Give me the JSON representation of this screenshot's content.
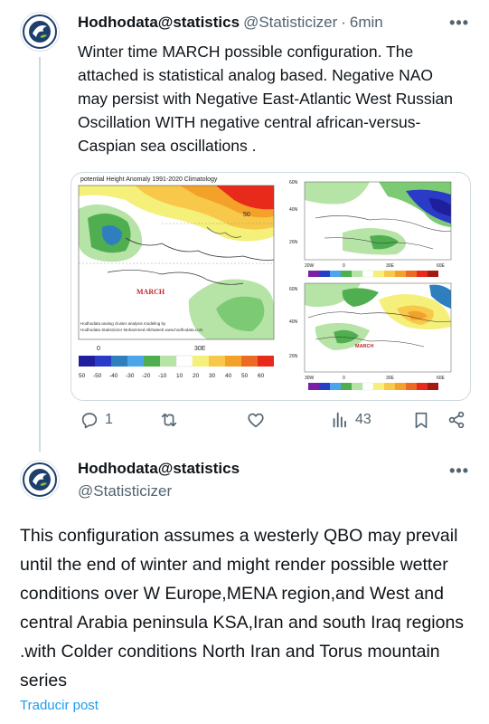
{
  "tweet1": {
    "display_name": "Hodhodata@statistics",
    "handle": "@Statisticizer",
    "separator": "·",
    "time": "6min",
    "more": "•••",
    "text": "Winter time MARCH possible configuration. The attached is statistical analog based. Negative NAO may persist with Negative East-Atlantic West Russian Oscillation WITH negative central african-versus-Caspian sea oscillations .",
    "media": {
      "left_title": "potential Height Anomaly 1991-2020 Climatology",
      "month_label": "MARCH",
      "credit_line1": "Hodhodata analog cluster analysis modeling by",
      "credit_line2": "Hodhodata Statisticizer Mohammed Alkhateeb www.hodhodata.com",
      "contour_label": "50",
      "left_axis_tick": "0",
      "left_axis_tick_2": "30E",
      "left_scale": [
        "50",
        "-50",
        "-40",
        "-30",
        "-20",
        "-10",
        "10",
        "20",
        "30",
        "40",
        "50",
        "60"
      ],
      "right_top_lat": [
        "60N",
        "40N",
        "20N"
      ],
      "right_top_lon": [
        "20W",
        "0",
        "30E",
        "60E"
      ],
      "right_bottom_lat": [
        "60N",
        "40N",
        "20N"
      ],
      "right_bottom_lon": [
        "30W",
        "0",
        "30E",
        "60E"
      ],
      "right_bottom_month": "MARCH",
      "map_colors": {
        "strong_negative": "#2a3bc8",
        "negative": "#4aa6e8",
        "neutral": "#ffffff",
        "weak_positive": "#f5f07a",
        "positive": "#f4a12a",
        "strong_positive": "#e82a1a",
        "green_anomaly": "#4fae4f",
        "pale_green": "#b6e3a6"
      }
    },
    "actions": {
      "reply_count": "1",
      "retweet_count": "",
      "like_count": "",
      "views_count": "43"
    }
  },
  "tweet2": {
    "display_name": "Hodhodata@statistics",
    "handle": "@Statisticizer",
    "more": "•••",
    "text": "This configuration assumes a westerly QBO may prevail until the end of winter and might render possible wetter conditions over W Europe,MENA region,and West and central  Arabia peninsula KSA,Iran and south Iraq regions .with Colder conditions North Iran and Torus mountain series",
    "translate_link": "Traducir post"
  },
  "colors": {
    "text": "#0f1419",
    "muted": "#536471",
    "link": "#1d9bf0",
    "border": "#cfd9de"
  }
}
